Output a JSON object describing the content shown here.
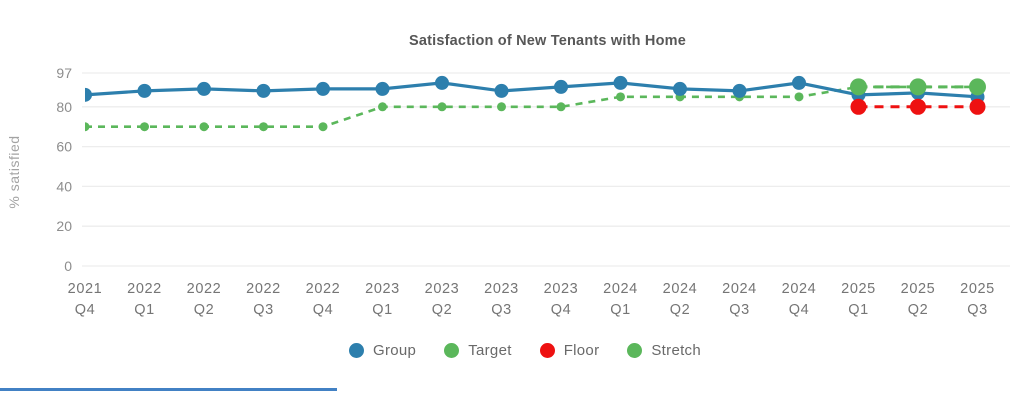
{
  "title": "Satisfaction of New Tenants with Home",
  "chart_data": {
    "type": "line",
    "title": "Satisfaction of New Tenants with Home",
    "ylabel": "% satisfied",
    "xlabel": "",
    "ylim": [
      0,
      97
    ],
    "yticks": [
      0,
      20,
      40,
      60,
      80,
      97
    ],
    "grid": true,
    "legend_position": "bottom",
    "categories": [
      "2021 Q4",
      "2022 Q1",
      "2022 Q2",
      "2022 Q3",
      "2022 Q4",
      "2023 Q1",
      "2023 Q2",
      "2023 Q3",
      "2023 Q4",
      "2024 Q1",
      "2024 Q2",
      "2024 Q3",
      "2024 Q4",
      "2025 Q1",
      "2025 Q2",
      "2025 Q3"
    ],
    "series": [
      {
        "name": "Group",
        "color": "#2d7fad",
        "line": "solid",
        "marker_radius": 7,
        "values": [
          86,
          88,
          89,
          88,
          89,
          89,
          92,
          88,
          90,
          92,
          89,
          88,
          92,
          86,
          87,
          85
        ]
      },
      {
        "name": "Target",
        "color": "#5bb75b",
        "line": "dashed",
        "marker_radius": 4.5,
        "values": [
          70,
          70,
          70,
          70,
          70,
          80,
          80,
          80,
          80,
          85,
          85,
          85,
          85,
          90,
          90,
          90
        ]
      },
      {
        "name": "Floor",
        "color": "#ee1111",
        "line": "dashed",
        "marker_radius": 8,
        "values": [
          null,
          null,
          null,
          null,
          null,
          null,
          null,
          null,
          null,
          null,
          null,
          null,
          null,
          80,
          80,
          80
        ]
      },
      {
        "name": "Stretch",
        "color": "#5bb75b",
        "line": "dashed",
        "marker_radius": 8.5,
        "values": [
          null,
          null,
          null,
          null,
          null,
          null,
          null,
          null,
          null,
          null,
          null,
          null,
          null,
          90,
          90,
          90
        ]
      }
    ]
  },
  "legend": {
    "items": [
      {
        "label": "Group",
        "color": "#2d7fad"
      },
      {
        "label": "Target",
        "color": "#5bb75b"
      },
      {
        "label": "Floor",
        "color": "#ee1111"
      },
      {
        "label": "Stretch",
        "color": "#5bb75b"
      }
    ]
  },
  "colors": {
    "accent_line": "#4281c4",
    "gridline": "#ededed",
    "title_text": "#575757",
    "axis_tick_text": "#8d8d8d",
    "x_label_text": "#757575",
    "legend_text": "#696969",
    "y_axis_title_text": "#a3a3a3"
  }
}
